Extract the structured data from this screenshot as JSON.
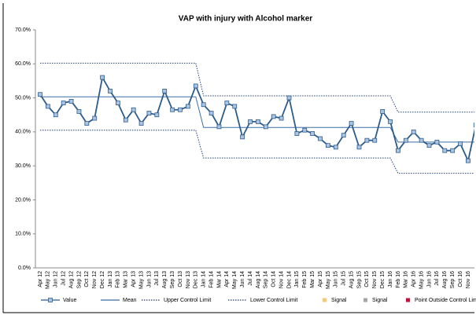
{
  "chart_data": {
    "type": "line",
    "title": "VAP with injury with Alcohol marker",
    "categories": [
      "Apr 12",
      "May 12",
      "Jun 12",
      "Jul 12",
      "Aug 12",
      "Sep 12",
      "Oct 12",
      "Nov 12",
      "Dec 12",
      "Jan 13",
      "Feb 13",
      "Mar 13",
      "Apr 13",
      "May 13",
      "Jun 13",
      "Jul 13",
      "Aug 13",
      "Sep 13",
      "Oct 13",
      "Nov 13",
      "Dec 13",
      "Jan 14",
      "Feb 14",
      "Mar 14",
      "Apr 14",
      "May 14",
      "Jun 14",
      "Jul 14",
      "Aug 14",
      "Sep 14",
      "Oct 14",
      "Nov 14",
      "Dec 14",
      "Jan 15",
      "Feb 15",
      "Mar 15",
      "Apr 15",
      "May 15",
      "Jun 15",
      "Jul 15",
      "Aug 15",
      "Sep 15",
      "Oct 15",
      "Nov 15",
      "Dec 15",
      "Jan 16",
      "Feb 16",
      "Mar 16",
      "Apr 16",
      "May 16",
      "Jun 16",
      "Jul 16",
      "Aug 16",
      "Sep 16",
      "Oct 16",
      "Nov 16",
      null
    ],
    "series": [
      {
        "name": "Value",
        "color": "#2e5c8a",
        "marker": true,
        "dash": "solid",
        "values": [
          51,
          47.5,
          45,
          48.5,
          49,
          46,
          42.5,
          44,
          56,
          52,
          48.5,
          43.5,
          46.5,
          42.5,
          45.5,
          45,
          52,
          46.5,
          46.5,
          47.5,
          53.5,
          48,
          45.5,
          41.5,
          48.5,
          47.5,
          38.5,
          43,
          43,
          41.5,
          44.5,
          44,
          50,
          39.5,
          40.5,
          39.5,
          38,
          36,
          35.5,
          39,
          42.5,
          35.5,
          37.5,
          37.5,
          46,
          43,
          34.5,
          37.5,
          40,
          37.5,
          36,
          37,
          34.5,
          34.5,
          36.5,
          31.5,
          42
        ]
      },
      {
        "name": "Mean",
        "color": "#3a6ea5",
        "marker": false,
        "dash": "solid",
        "values": [
          50.3,
          50.3,
          50.3,
          50.3,
          50.3,
          50.3,
          50.3,
          50.3,
          50.3,
          50.3,
          50.3,
          50.3,
          50.3,
          50.3,
          50.3,
          50.3,
          50.3,
          50.3,
          50.3,
          50.3,
          50.3,
          41.3,
          41.3,
          41.3,
          41.3,
          41.3,
          41.3,
          41.3,
          41.3,
          41.3,
          41.3,
          41.3,
          41.3,
          41.3,
          41.3,
          41.3,
          41.3,
          41.3,
          41.3,
          41.3,
          41.3,
          41.3,
          41.3,
          41.3,
          41.3,
          41.3,
          37,
          37,
          37,
          37,
          37,
          37,
          37,
          37,
          37,
          37,
          37
        ]
      },
      {
        "name": "Upper Control Limit",
        "color": "#1f3f7a",
        "marker": false,
        "dash": "dotted",
        "values": [
          60.2,
          60.2,
          60.2,
          60.2,
          60.2,
          60.2,
          60.2,
          60.2,
          60.2,
          60.2,
          60.2,
          60.2,
          60.2,
          60.2,
          60.2,
          60.2,
          60.2,
          60.2,
          60.2,
          60.2,
          60.2,
          50.6,
          50.6,
          50.6,
          50.6,
          50.6,
          50.6,
          50.6,
          50.6,
          50.6,
          50.6,
          50.6,
          50.6,
          50.6,
          50.6,
          50.6,
          50.6,
          50.6,
          50.6,
          50.6,
          50.6,
          50.6,
          50.6,
          50.6,
          50.6,
          50.6,
          45.8,
          45.8,
          45.8,
          45.8,
          45.8,
          45.8,
          45.8,
          45.8,
          45.8,
          45.8,
          45.8
        ]
      },
      {
        "name": "Lower Control Limit",
        "color": "#1f3f7a",
        "marker": false,
        "dash": "dotted",
        "values": [
          40.5,
          40.5,
          40.5,
          40.5,
          40.5,
          40.5,
          40.5,
          40.5,
          40.5,
          40.5,
          40.5,
          40.5,
          40.5,
          40.5,
          40.5,
          40.5,
          40.5,
          40.5,
          40.5,
          40.5,
          40.5,
          32.3,
          32.3,
          32.3,
          32.3,
          32.3,
          32.3,
          32.3,
          32.3,
          32.3,
          32.3,
          32.3,
          32.3,
          32.3,
          32.3,
          32.3,
          32.3,
          32.3,
          32.3,
          32.3,
          32.3,
          32.3,
          32.3,
          32.3,
          32.3,
          32.3,
          27.8,
          27.8,
          27.8,
          27.8,
          27.8,
          27.8,
          27.8,
          27.8,
          27.8,
          27.8,
          27.8
        ]
      }
    ],
    "signal_markers": [
      {
        "name": "Signal",
        "color": "#f5c77e"
      },
      {
        "name": "Signal",
        "color": "#a6a6a6"
      },
      {
        "name": "Point Outside Control Limit",
        "color": "#c0143c"
      }
    ],
    "ylim": [
      0,
      70
    ],
    "yticks": [
      {
        "value": 0,
        "label": "0.0%"
      },
      {
        "value": 10,
        "label": "10.0%"
      },
      {
        "value": 20,
        "label": "20.0%"
      },
      {
        "value": 30,
        "label": "30.0%"
      },
      {
        "value": 40,
        "label": "40.0%"
      },
      {
        "value": 50,
        "label": "50.0%"
      },
      {
        "value": 60,
        "label": "60.0%"
      },
      {
        "value": 70,
        "label": "70.0%"
      }
    ],
    "grid": false
  }
}
